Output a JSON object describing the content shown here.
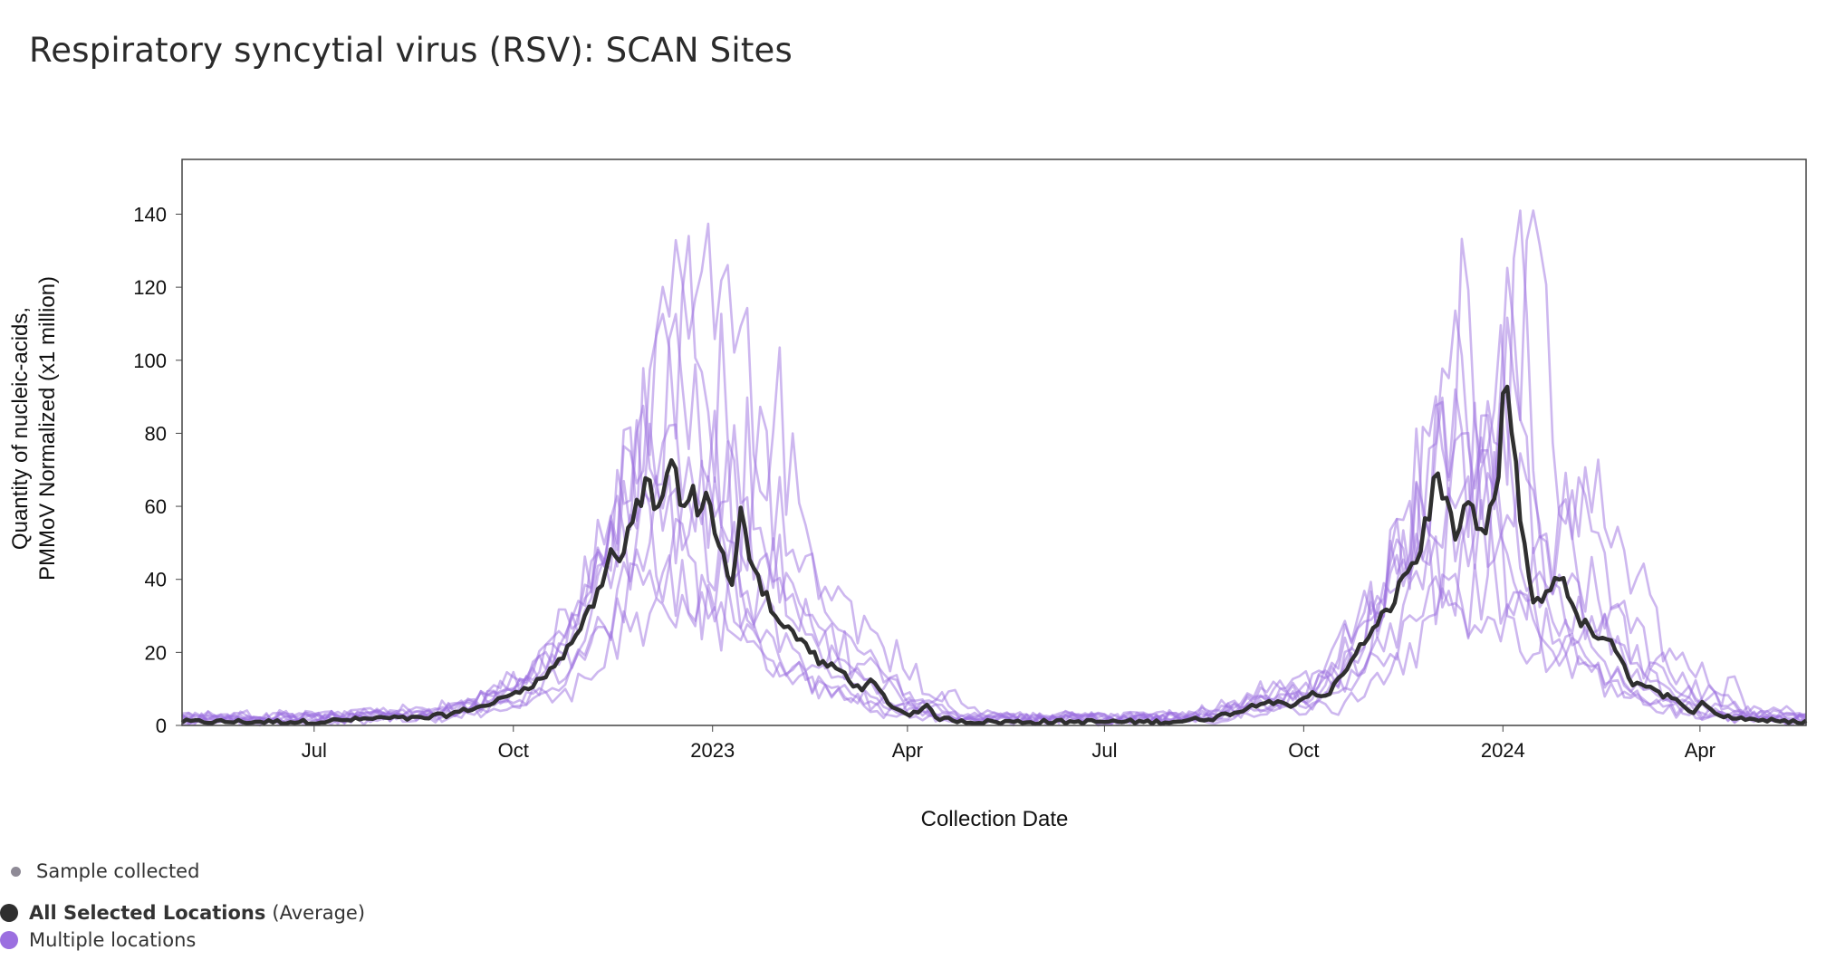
{
  "chart_data": {
    "type": "line",
    "title": "Respiratory syncytial virus (RSV): SCAN Sites",
    "xlabel": "Collection Date",
    "ylabel_line1": "Quantity of nucleic-acids,",
    "ylabel_line2": "PMMoV Normalized (x1 million)",
    "xlim": [
      "2022-05-01",
      "2024-05-20"
    ],
    "ylim": [
      0,
      155
    ],
    "y_ticks": [
      "0",
      "20",
      "40",
      "60",
      "80",
      "100",
      "120",
      "140"
    ],
    "x_ticks": [
      {
        "date": "2022-07-01",
        "label": "Jul"
      },
      {
        "date": "2022-10-01",
        "label": "Oct"
      },
      {
        "date": "2023-01-01",
        "label": "2023"
      },
      {
        "date": "2023-04-01",
        "label": "Apr"
      },
      {
        "date": "2023-07-01",
        "label": "Jul"
      },
      {
        "date": "2023-10-01",
        "label": "Oct"
      },
      {
        "date": "2024-01-01",
        "label": "2024"
      },
      {
        "date": "2024-04-01",
        "label": "Apr"
      }
    ],
    "grid": false,
    "series": [
      {
        "name": "All Selected Locations",
        "color": "#2f2f2f",
        "points": [
          [
            "2022-05-01",
            1
          ],
          [
            "2022-06-01",
            1
          ],
          [
            "2022-07-01",
            1
          ],
          [
            "2022-08-01",
            2
          ],
          [
            "2022-08-20",
            2
          ],
          [
            "2022-09-01",
            3
          ],
          [
            "2022-09-15",
            5
          ],
          [
            "2022-09-25",
            7
          ],
          [
            "2022-10-05",
            10
          ],
          [
            "2022-10-15",
            13
          ],
          [
            "2022-10-25",
            20
          ],
          [
            "2022-11-01",
            27
          ],
          [
            "2022-11-08",
            35
          ],
          [
            "2022-11-15",
            47
          ],
          [
            "2022-11-20",
            45
          ],
          [
            "2022-11-25",
            55
          ],
          [
            "2022-12-01",
            68
          ],
          [
            "2022-12-05",
            60
          ],
          [
            "2022-12-10",
            65
          ],
          [
            "2022-12-14",
            72
          ],
          [
            "2022-12-18",
            58
          ],
          [
            "2022-12-22",
            63
          ],
          [
            "2022-12-26",
            60
          ],
          [
            "2022-12-30",
            62
          ],
          [
            "2023-01-05",
            48
          ],
          [
            "2023-01-10",
            37
          ],
          [
            "2023-01-14",
            57
          ],
          [
            "2023-01-18",
            48
          ],
          [
            "2023-01-24",
            38
          ],
          [
            "2023-02-01",
            28
          ],
          [
            "2023-02-10",
            24
          ],
          [
            "2023-02-20",
            17
          ],
          [
            "2023-03-01",
            15
          ],
          [
            "2023-03-10",
            10
          ],
          [
            "2023-03-15",
            12
          ],
          [
            "2023-03-25",
            5
          ],
          [
            "2023-04-01",
            3
          ],
          [
            "2023-04-10",
            5
          ],
          [
            "2023-04-15",
            2
          ],
          [
            "2023-05-01",
            1
          ],
          [
            "2023-06-01",
            1
          ],
          [
            "2023-07-01",
            1
          ],
          [
            "2023-08-01",
            1
          ],
          [
            "2023-08-20",
            2
          ],
          [
            "2023-09-01",
            4
          ],
          [
            "2023-09-15",
            7
          ],
          [
            "2023-09-25",
            5
          ],
          [
            "2023-10-05",
            9
          ],
          [
            "2023-10-12",
            8
          ],
          [
            "2023-10-20",
            15
          ],
          [
            "2023-10-28",
            22
          ],
          [
            "2023-11-05",
            28
          ],
          [
            "2023-11-12",
            35
          ],
          [
            "2023-11-18",
            43
          ],
          [
            "2023-11-22",
            45
          ],
          [
            "2023-11-28",
            58
          ],
          [
            "2023-12-01",
            70
          ],
          [
            "2023-12-05",
            65
          ],
          [
            "2023-12-09",
            52
          ],
          [
            "2023-12-13",
            55
          ],
          [
            "2023-12-17",
            60
          ],
          [
            "2023-12-21",
            50
          ],
          [
            "2023-12-25",
            55
          ],
          [
            "2023-12-29",
            62
          ],
          [
            "2024-01-02",
            97
          ],
          [
            "2024-01-06",
            75
          ],
          [
            "2024-01-10",
            50
          ],
          [
            "2024-01-16",
            32
          ],
          [
            "2024-01-22",
            37
          ],
          [
            "2024-01-28",
            43
          ],
          [
            "2024-02-03",
            30
          ],
          [
            "2024-02-12",
            25
          ],
          [
            "2024-02-20",
            22
          ],
          [
            "2024-03-01",
            12
          ],
          [
            "2024-03-10",
            10
          ],
          [
            "2024-03-20",
            7
          ],
          [
            "2024-03-28",
            3
          ],
          [
            "2024-04-02",
            7
          ],
          [
            "2024-04-08",
            3
          ],
          [
            "2024-04-20",
            2
          ],
          [
            "2024-05-10",
            1
          ],
          [
            "2024-05-20",
            1
          ]
        ]
      }
    ],
    "multiple_locations": {
      "name": "Multiple locations",
      "color": "#9b6fe0",
      "count": 9
    }
  },
  "legend": {
    "sample": {
      "label": "Sample collected",
      "color": "#8e8a96"
    },
    "average": {
      "label": "All Selected Locations",
      "suffix": "(Average)",
      "color": "#2f2f2f"
    },
    "multiple": {
      "label": "Multiple locations",
      "color": "#9b6fe0"
    }
  }
}
